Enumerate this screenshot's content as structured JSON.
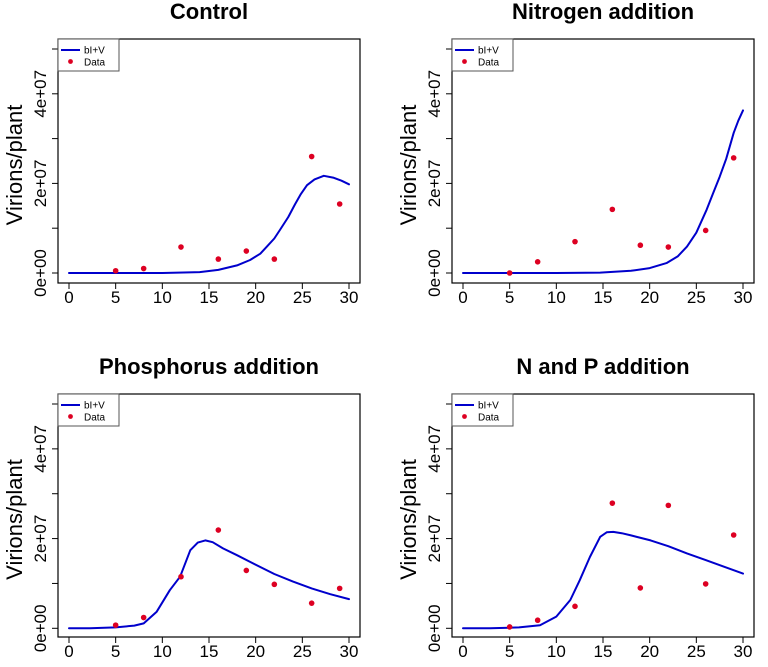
{
  "figure": {
    "legend": {
      "line_label": "bI+V",
      "points_label": "Data",
      "placement": "top-left"
    },
    "colors": {
      "model_line": "#0000cc",
      "data_points": "#dd0022",
      "axes": "#000000"
    }
  },
  "chart_data": [
    {
      "type": "line",
      "title": "Control",
      "xlabel": "",
      "ylabel": "Virions/plant",
      "xlim": [
        0,
        30
      ],
      "ylim": [
        0,
        50000000
      ],
      "x_ticks": [
        0,
        5,
        10,
        15,
        20,
        25,
        30
      ],
      "x_tick_labels": [
        "0",
        "5",
        "10",
        "15",
        "20",
        "25",
        "30"
      ],
      "y_ticks": [
        0,
        10000000,
        20000000,
        30000000,
        40000000,
        50000000
      ],
      "y_tick_labels": [
        "0e+00",
        "",
        "2e+07",
        "",
        "4e+07",
        ""
      ],
      "grid": false,
      "legend": [
        "bI+V",
        "Data"
      ],
      "series": [
        {
          "name": "bI+V",
          "kind": "line",
          "x": [
            0,
            5,
            10,
            14,
            16,
            18,
            19.4,
            20.5,
            21.2,
            22,
            22.6,
            23.5,
            24.2,
            24.8,
            25.5,
            26.3,
            27.3,
            28.3,
            29.2,
            30
          ],
          "y": [
            0,
            0,
            0,
            200000,
            700000,
            1700000,
            2900000,
            4300000,
            5900000,
            7700000,
            9600000,
            12500000,
            15300000,
            17500000,
            19600000,
            20900000,
            21700000,
            21300000,
            20600000,
            19800000
          ]
        },
        {
          "name": "Data",
          "kind": "points",
          "x": [
            5,
            8,
            12,
            16,
            19,
            22,
            26,
            29
          ],
          "y": [
            500000,
            1000000,
            5800000,
            3100000,
            4900000,
            3100000,
            26000000,
            15400000
          ]
        }
      ]
    },
    {
      "type": "line",
      "title": "Nitrogen addition",
      "xlabel": "",
      "ylabel": "Virions/plant",
      "xlim": [
        0,
        30
      ],
      "ylim": [
        0,
        50000000
      ],
      "x_ticks": [
        0,
        5,
        10,
        15,
        20,
        25,
        30
      ],
      "x_tick_labels": [
        "0",
        "5",
        "10",
        "15",
        "20",
        "25",
        "30"
      ],
      "y_ticks": [
        0,
        10000000,
        20000000,
        30000000,
        40000000,
        50000000
      ],
      "y_tick_labels": [
        "0e+00",
        "",
        "2e+07",
        "",
        "4e+07",
        ""
      ],
      "grid": false,
      "legend": [
        "bI+V",
        "Data"
      ],
      "series": [
        {
          "name": "bI+V",
          "kind": "line",
          "x": [
            0,
            10,
            14.7,
            18,
            20,
            21.8,
            23,
            24,
            25,
            26.1,
            26.8,
            27.5,
            28.2,
            29,
            29.5,
            30
          ],
          "y": [
            0,
            0,
            100000,
            500000,
            1100000,
            2200000,
            3700000,
            5900000,
            9000000,
            14100000,
            17800000,
            21500000,
            25500000,
            31300000,
            34000000,
            36300000
          ]
        },
        {
          "name": "Data",
          "kind": "points",
          "x": [
            5,
            8,
            12,
            16,
            19,
            22,
            26,
            29
          ],
          "y": [
            0,
            2500000,
            7000000,
            14200000,
            6200000,
            5800000,
            9500000,
            25700000
          ]
        }
      ]
    },
    {
      "type": "line",
      "title": "Phosphorus addition",
      "xlabel": "",
      "ylabel": "Virions/plant",
      "xlim": [
        0,
        30
      ],
      "ylim": [
        0,
        50000000
      ],
      "x_ticks": [
        0,
        5,
        10,
        15,
        20,
        25,
        30
      ],
      "x_tick_labels": [
        "0",
        "5",
        "10",
        "15",
        "20",
        "25",
        "30"
      ],
      "y_ticks": [
        0,
        10000000,
        20000000,
        30000000,
        40000000,
        50000000
      ],
      "y_tick_labels": [
        "0e+00",
        "",
        "2e+07",
        "",
        "4e+07",
        ""
      ],
      "grid": false,
      "legend": [
        "bI+V",
        "Data"
      ],
      "series": [
        {
          "name": "bI+V",
          "kind": "line",
          "x": [
            0,
            2.25,
            5,
            7,
            8,
            9.4,
            10.8,
            11.9,
            13,
            13.8,
            14.6,
            15.4,
            16.5,
            18,
            19.4,
            22,
            24,
            26,
            28,
            30
          ],
          "y": [
            0,
            0,
            200000,
            600000,
            1100000,
            3700000,
            8500000,
            11500000,
            17400000,
            19100000,
            19600000,
            19200000,
            17800000,
            16300000,
            14800000,
            12100000,
            10400000,
            8900000,
            7600000,
            6500000
          ]
        },
        {
          "name": "Data",
          "kind": "points",
          "x": [
            5,
            8,
            12,
            16,
            19,
            22,
            26,
            29
          ],
          "y": [
            700000,
            2400000,
            11500000,
            21900000,
            12900000,
            9800000,
            5600000,
            8900000
          ]
        }
      ]
    },
    {
      "type": "line",
      "title": "N and P addition",
      "xlabel": "",
      "ylabel": "Virions/plant",
      "xlim": [
        0,
        30
      ],
      "ylim": [
        0,
        50000000
      ],
      "x_ticks": [
        0,
        5,
        10,
        15,
        20,
        25,
        30
      ],
      "x_tick_labels": [
        "0",
        "5",
        "10",
        "15",
        "20",
        "25",
        "30"
      ],
      "y_ticks": [
        0,
        10000000,
        20000000,
        30000000,
        40000000,
        50000000
      ],
      "y_tick_labels": [
        "0e+00",
        "",
        "2e+07",
        "",
        "4e+07",
        ""
      ],
      "grid": false,
      "legend": [
        "bI+V",
        "Data"
      ],
      "series": [
        {
          "name": "bI+V",
          "kind": "line",
          "x": [
            0,
            2.9,
            6,
            8.25,
            10,
            11.5,
            12.5,
            13.6,
            14.7,
            15.4,
            16.1,
            17,
            18,
            20.1,
            22,
            24,
            26,
            28,
            30
          ],
          "y": [
            0,
            0,
            200000,
            700000,
            2600000,
            6300000,
            10700000,
            15900000,
            20400000,
            21400000,
            21500000,
            21200000,
            20700000,
            19600000,
            18300000,
            16700000,
            15200000,
            13700000,
            12200000
          ]
        },
        {
          "name": "Data",
          "kind": "points",
          "x": [
            5,
            8,
            12,
            16,
            19,
            22,
            26,
            29
          ],
          "y": [
            300000,
            1800000,
            4900000,
            27900000,
            9000000,
            27400000,
            9900000,
            20800000
          ]
        }
      ]
    }
  ]
}
